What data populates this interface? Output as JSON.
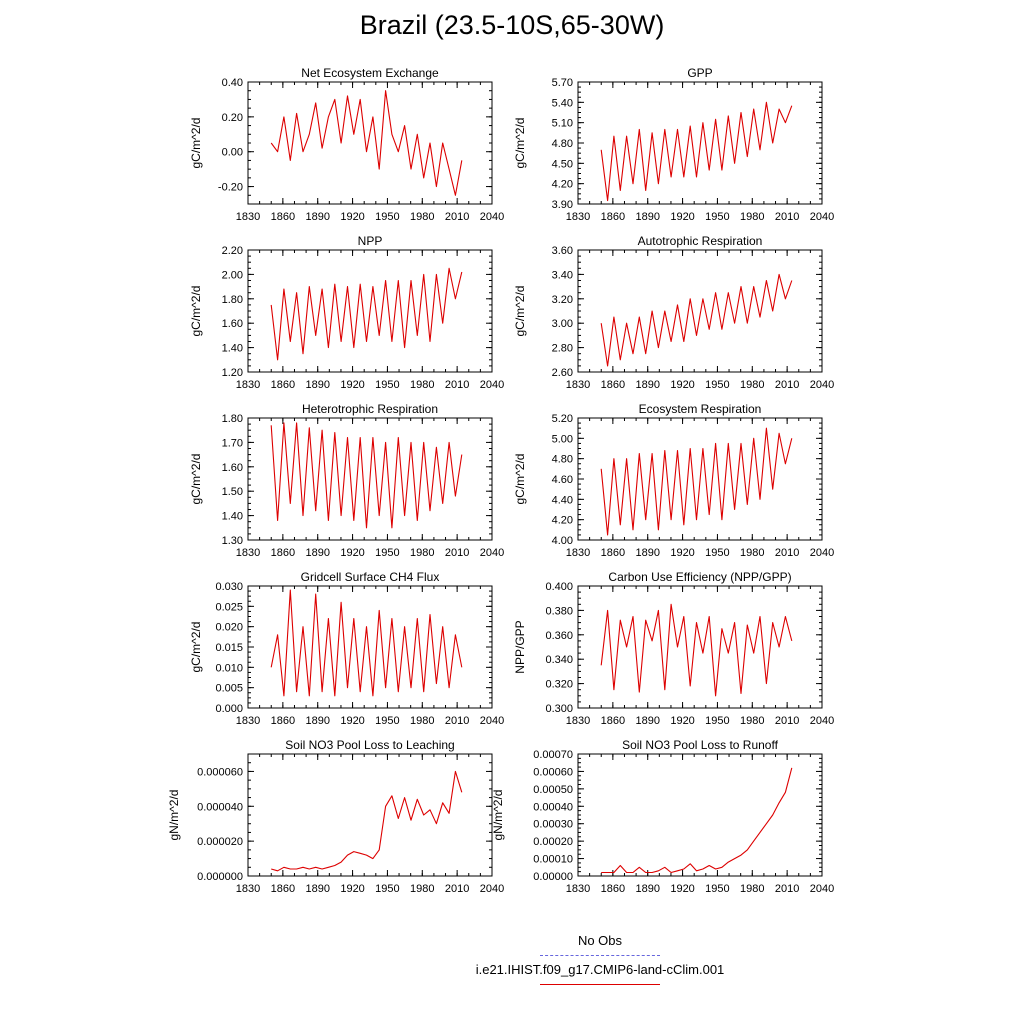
{
  "title": "Brazil (23.5-10S,65-30W)",
  "legend": {
    "obs_label": "No Obs",
    "obs_color": "#6666dd",
    "model_label": "i.e21.IHIST.f09_g17.CMIP6-land-cClim.001",
    "model_color": "#dd0000"
  },
  "chart_data": [
    {
      "type": "line",
      "title": "Net Ecosystem Exchange",
      "ylabel": "gC/m^2/d",
      "xlim": [
        1830,
        2040
      ],
      "xticks": [
        "1830",
        "1860",
        "1890",
        "1920",
        "1950",
        "1980",
        "2010",
        "2040"
      ],
      "ylim": [
        -0.3,
        0.4
      ],
      "yticks": [
        "-0.20",
        "0.00",
        "0.20",
        "0.40"
      ],
      "ytick_values": [
        -0.2,
        0.0,
        0.2,
        0.4
      ],
      "series": [
        {
          "color": "#dd0000",
          "x_start": 1850,
          "x_end": 2014,
          "key_values": [
            0.05,
            0.0,
            0.2,
            -0.05,
            0.22,
            0.0,
            0.1,
            0.28,
            0.02,
            0.2,
            0.3,
            0.05,
            0.32,
            0.1,
            0.3,
            0.0,
            0.2,
            -0.1,
            0.35,
            0.1,
            0.0,
            0.15,
            -0.1,
            0.1,
            -0.15,
            0.05,
            -0.2,
            0.05,
            -0.1,
            -0.25,
            -0.05
          ]
        }
      ]
    },
    {
      "type": "line",
      "title": "GPP",
      "ylabel": "gC/m^2/d",
      "xlim": [
        1830,
        2040
      ],
      "xticks": [
        "1830",
        "1860",
        "1890",
        "1920",
        "1950",
        "1980",
        "2010",
        "2040"
      ],
      "ylim": [
        3.9,
        5.7
      ],
      "yticks": [
        "3.90",
        "4.20",
        "4.50",
        "4.80",
        "5.10",
        "5.40",
        "5.70"
      ],
      "ytick_values": [
        3.9,
        4.2,
        4.5,
        4.8,
        5.1,
        5.4,
        5.7
      ],
      "series": [
        {
          "color": "#dd0000",
          "x_start": 1850,
          "x_end": 2014,
          "key_values": [
            4.7,
            3.95,
            4.9,
            4.1,
            4.9,
            4.2,
            5.0,
            4.1,
            4.95,
            4.2,
            5.0,
            4.3,
            5.0,
            4.3,
            5.05,
            4.3,
            5.1,
            4.4,
            5.15,
            4.4,
            5.2,
            4.5,
            5.25,
            4.6,
            5.3,
            4.7,
            5.4,
            4.8,
            5.3,
            5.1,
            5.35
          ]
        }
      ]
    },
    {
      "type": "line",
      "title": "NPP",
      "ylabel": "gC/m^2/d",
      "xlim": [
        1830,
        2040
      ],
      "xticks": [
        "1830",
        "1860",
        "1890",
        "1920",
        "1950",
        "1980",
        "2010",
        "2040"
      ],
      "ylim": [
        1.2,
        2.2
      ],
      "yticks": [
        "1.20",
        "1.40",
        "1.60",
        "1.80",
        "2.00",
        "2.20"
      ],
      "ytick_values": [
        1.2,
        1.4,
        1.6,
        1.8,
        2.0,
        2.2
      ],
      "series": [
        {
          "color": "#dd0000",
          "x_start": 1850,
          "x_end": 2014,
          "key_values": [
            1.75,
            1.3,
            1.88,
            1.45,
            1.85,
            1.35,
            1.9,
            1.5,
            1.88,
            1.4,
            1.92,
            1.45,
            1.9,
            1.4,
            1.92,
            1.45,
            1.9,
            1.5,
            1.95,
            1.45,
            1.95,
            1.4,
            1.95,
            1.5,
            2.0,
            1.45,
            2.0,
            1.6,
            2.05,
            1.8,
            2.02
          ]
        }
      ]
    },
    {
      "type": "line",
      "title": "Autotrophic Respiration",
      "ylabel": "gC/m^2/d",
      "xlim": [
        1830,
        2040
      ],
      "xticks": [
        "1830",
        "1860",
        "1890",
        "1920",
        "1950",
        "1980",
        "2010",
        "2040"
      ],
      "ylim": [
        2.6,
        3.6
      ],
      "yticks": [
        "2.60",
        "2.80",
        "3.00",
        "3.20",
        "3.40",
        "3.60"
      ],
      "ytick_values": [
        2.6,
        2.8,
        3.0,
        3.2,
        3.4,
        3.6
      ],
      "series": [
        {
          "color": "#dd0000",
          "x_start": 1850,
          "x_end": 2014,
          "key_values": [
            3.0,
            2.65,
            3.05,
            2.7,
            3.0,
            2.75,
            3.05,
            2.75,
            3.1,
            2.8,
            3.1,
            2.85,
            3.15,
            2.85,
            3.2,
            2.9,
            3.2,
            2.95,
            3.25,
            2.95,
            3.25,
            3.0,
            3.3,
            3.0,
            3.3,
            3.05,
            3.35,
            3.1,
            3.4,
            3.2,
            3.35
          ]
        }
      ]
    },
    {
      "type": "line",
      "title": "Heterotrophic Respiration",
      "ylabel": "gC/m^2/d",
      "xlim": [
        1830,
        2040
      ],
      "xticks": [
        "1830",
        "1860",
        "1890",
        "1920",
        "1950",
        "1980",
        "2010",
        "2040"
      ],
      "ylim": [
        1.3,
        1.8
      ],
      "yticks": [
        "1.30",
        "1.40",
        "1.50",
        "1.60",
        "1.70",
        "1.80"
      ],
      "ytick_values": [
        1.3,
        1.4,
        1.5,
        1.6,
        1.7,
        1.8
      ],
      "series": [
        {
          "color": "#dd0000",
          "x_start": 1850,
          "x_end": 2014,
          "key_values": [
            1.77,
            1.38,
            1.78,
            1.45,
            1.78,
            1.4,
            1.76,
            1.42,
            1.75,
            1.38,
            1.74,
            1.4,
            1.72,
            1.38,
            1.72,
            1.35,
            1.72,
            1.4,
            1.7,
            1.35,
            1.72,
            1.4,
            1.7,
            1.38,
            1.7,
            1.42,
            1.68,
            1.45,
            1.7,
            1.48,
            1.65
          ]
        }
      ]
    },
    {
      "type": "line",
      "title": "Ecosystem Respiration",
      "ylabel": "gC/m^2/d",
      "xlim": [
        1830,
        2040
      ],
      "xticks": [
        "1830",
        "1860",
        "1890",
        "1920",
        "1950",
        "1980",
        "2010",
        "2040"
      ],
      "ylim": [
        4.0,
        5.2
      ],
      "yticks": [
        "4.00",
        "4.20",
        "4.40",
        "4.60",
        "4.80",
        "5.00",
        "5.20"
      ],
      "ytick_values": [
        4.0,
        4.2,
        4.4,
        4.6,
        4.8,
        5.0,
        5.2
      ],
      "series": [
        {
          "color": "#dd0000",
          "x_start": 1850,
          "x_end": 2014,
          "key_values": [
            4.7,
            4.05,
            4.8,
            4.15,
            4.8,
            4.1,
            4.85,
            4.2,
            4.85,
            4.1,
            4.88,
            4.2,
            4.88,
            4.15,
            4.9,
            4.2,
            4.9,
            4.25,
            4.95,
            4.2,
            4.95,
            4.3,
            4.95,
            4.35,
            5.0,
            4.4,
            5.1,
            4.5,
            5.05,
            4.75,
            5.0
          ]
        }
      ]
    },
    {
      "type": "line",
      "title": "Gridcell Surface CH4 Flux",
      "ylabel": "gC/m^2/d",
      "xlim": [
        1830,
        2040
      ],
      "xticks": [
        "1830",
        "1860",
        "1890",
        "1920",
        "1950",
        "1980",
        "2010",
        "2040"
      ],
      "ylim": [
        0.0,
        0.03
      ],
      "yticks": [
        "0.000",
        "0.005",
        "0.010",
        "0.015",
        "0.020",
        "0.025",
        "0.030"
      ],
      "ytick_values": [
        0.0,
        0.005,
        0.01,
        0.015,
        0.02,
        0.025,
        0.03
      ],
      "series": [
        {
          "color": "#dd0000",
          "x_start": 1850,
          "x_end": 2014,
          "key_values": [
            0.01,
            0.018,
            0.003,
            0.029,
            0.004,
            0.02,
            0.003,
            0.028,
            0.004,
            0.022,
            0.003,
            0.026,
            0.005,
            0.022,
            0.004,
            0.02,
            0.003,
            0.024,
            0.005,
            0.022,
            0.004,
            0.02,
            0.005,
            0.022,
            0.004,
            0.023,
            0.006,
            0.02,
            0.005,
            0.018,
            0.01
          ]
        }
      ]
    },
    {
      "type": "line",
      "title": "Carbon Use Efficiency (NPP/GPP)",
      "ylabel": "NPP/GPP",
      "xlim": [
        1830,
        2040
      ],
      "xticks": [
        "1830",
        "1860",
        "1890",
        "1920",
        "1950",
        "1980",
        "2010",
        "2040"
      ],
      "ylim": [
        0.3,
        0.4
      ],
      "yticks": [
        "0.300",
        "0.320",
        "0.340",
        "0.360",
        "0.380",
        "0.400"
      ],
      "ytick_values": [
        0.3,
        0.32,
        0.34,
        0.36,
        0.38,
        0.4
      ],
      "series": [
        {
          "color": "#dd0000",
          "x_start": 1850,
          "x_end": 2014,
          "key_values": [
            0.335,
            0.38,
            0.315,
            0.372,
            0.35,
            0.375,
            0.313,
            0.372,
            0.355,
            0.38,
            0.315,
            0.385,
            0.35,
            0.375,
            0.318,
            0.37,
            0.345,
            0.375,
            0.31,
            0.365,
            0.345,
            0.37,
            0.312,
            0.368,
            0.345,
            0.375,
            0.32,
            0.37,
            0.35,
            0.375,
            0.355
          ]
        }
      ]
    },
    {
      "type": "line",
      "title": "Soil NO3 Pool Loss to Leaching",
      "ylabel": "gN/m^2/d",
      "xlim": [
        1830,
        2040
      ],
      "xticks": [
        "1830",
        "1860",
        "1890",
        "1920",
        "1950",
        "1980",
        "2010",
        "2040"
      ],
      "ylim": [
        0.0,
        7e-05
      ],
      "yticks": [
        "0.000000",
        "0.000020",
        "0.000040",
        "0.000060"
      ],
      "ytick_values": [
        0.0,
        2e-05,
        4e-05,
        6e-05
      ],
      "series": [
        {
          "color": "#dd0000",
          "x_start": 1850,
          "x_end": 2014,
          "key_values": [
            4e-06,
            3e-06,
            5e-06,
            4e-06,
            4e-06,
            5e-06,
            4e-06,
            5e-06,
            4e-06,
            5e-06,
            6e-06,
            8e-06,
            1.2e-05,
            1.4e-05,
            1.3e-05,
            1.2e-05,
            1e-05,
            1.5e-05,
            4e-05,
            4.6e-05,
            3.3e-05,
            4.5e-05,
            3.2e-05,
            4.4e-05,
            3.5e-05,
            3.8e-05,
            3e-05,
            4.2e-05,
            3.6e-05,
            6e-05,
            4.8e-05
          ]
        }
      ]
    },
    {
      "type": "line",
      "title": "Soil NO3 Pool Loss to Runoff",
      "ylabel": "gN/m^2/d",
      "xlim": [
        1830,
        2040
      ],
      "xticks": [
        "1830",
        "1860",
        "1890",
        "1920",
        "1950",
        "1980",
        "2010",
        "2040"
      ],
      "ylim": [
        0.0,
        0.0007
      ],
      "yticks": [
        "0.00000",
        "0.00010",
        "0.00020",
        "0.00030",
        "0.00040",
        "0.00050",
        "0.00060",
        "0.00070"
      ],
      "ytick_values": [
        0.0,
        0.0001,
        0.0002,
        0.0003,
        0.0004,
        0.0005,
        0.0006,
        0.0007
      ],
      "series": [
        {
          "color": "#dd0000",
          "x_start": 1850,
          "x_end": 2014,
          "key_values": [
            2e-05,
            2e-05,
            2e-05,
            6e-05,
            2e-05,
            2e-05,
            5e-05,
            2e-05,
            2e-05,
            3e-05,
            5e-05,
            2e-05,
            3e-05,
            4e-05,
            7e-05,
            3e-05,
            4e-05,
            6e-05,
            4e-05,
            5e-05,
            8e-05,
            0.0001,
            0.00012,
            0.00015,
            0.0002,
            0.00025,
            0.0003,
            0.00035,
            0.00042,
            0.00048,
            0.00062
          ]
        }
      ]
    }
  ]
}
